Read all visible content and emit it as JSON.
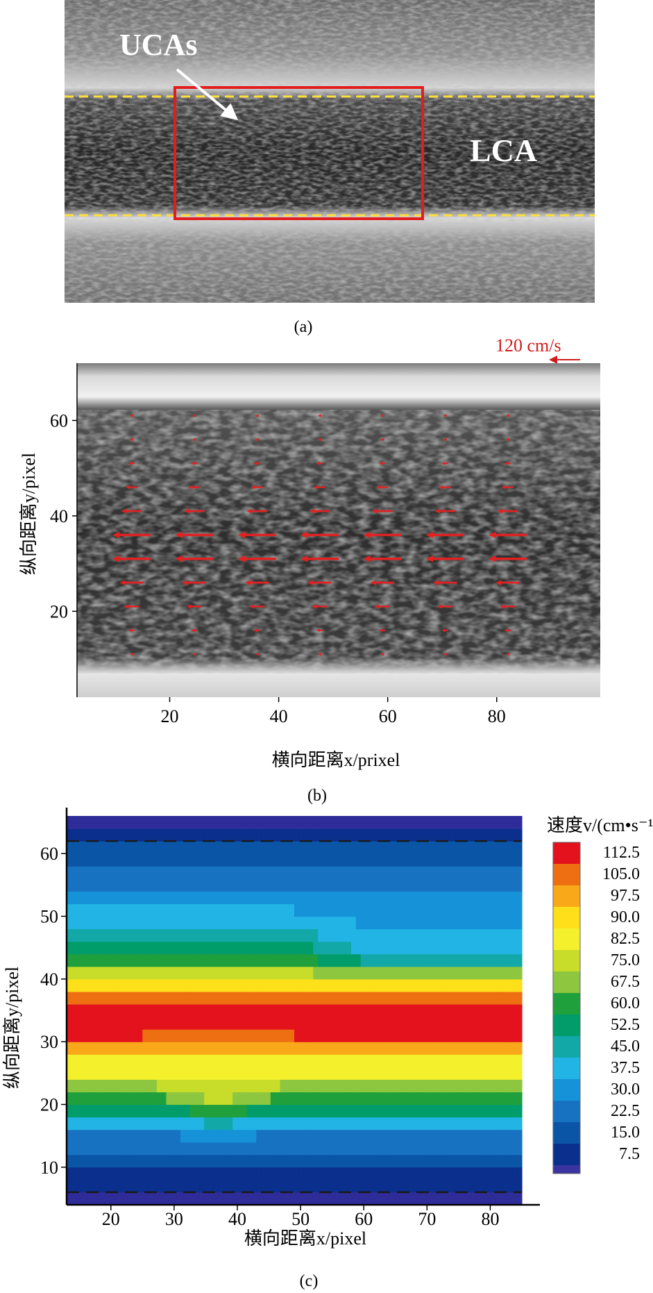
{
  "panel_a": {
    "label": "(a)",
    "annotation_ucas": "UCAs",
    "annotation_lca": "LCA",
    "colors": {
      "roi_box": "#e11d1d",
      "wall_lines": "#ffe03a",
      "text": "#ffffff"
    }
  },
  "panel_b": {
    "label": "(b)",
    "scale_label": "120 cm/s",
    "ylabel": "纵向距离y/pixel",
    "xlabel": "横向距离x/prixel",
    "colors": {
      "vectors": "#e02222",
      "scale": "#d21c1c"
    }
  },
  "panel_c": {
    "label": "(c)",
    "ylabel": "纵向距离y/pixel",
    "xlabel": "横向距离x/pixel",
    "colorbar_title": "速度v/(cm•s⁻¹)"
  },
  "chart_data": [
    {
      "type": "quiver",
      "x_ticks": [
        20,
        40,
        60,
        80
      ],
      "y_ticks": [
        20,
        40,
        60
      ],
      "xlim": [
        3,
        99
      ],
      "ylim": [
        2,
        72
      ],
      "scale_arrow_cm_s": 120,
      "vector_columns_x": [
        13,
        24.5,
        36,
        47.5,
        59,
        70.5,
        82
      ],
      "vector_rows": [
        {
          "y": 61,
          "speeds": [
            5,
            5,
            5,
            5,
            5,
            5,
            5
          ]
        },
        {
          "y": 56,
          "speeds": [
            10,
            10,
            10,
            10,
            10,
            10,
            10
          ]
        },
        {
          "y": 51,
          "speeds": [
            20,
            20,
            20,
            20,
            20,
            20,
            20
          ]
        },
        {
          "y": 46,
          "speeds": [
            35,
            35,
            35,
            35,
            35,
            35,
            35
          ]
        },
        {
          "y": 41,
          "speeds": [
            60,
            60,
            60,
            60,
            60,
            60,
            60
          ]
        },
        {
          "y": 36,
          "speeds": [
            112,
            112,
            112,
            112,
            112,
            112,
            112
          ]
        },
        {
          "y": 31,
          "speeds": [
            112,
            112,
            112,
            112,
            112,
            112,
            112
          ]
        },
        {
          "y": 26,
          "speeds": [
            70,
            70,
            70,
            70,
            70,
            70,
            70
          ]
        },
        {
          "y": 21,
          "speeds": [
            45,
            45,
            45,
            45,
            45,
            45,
            45
          ]
        },
        {
          "y": 16,
          "speeds": [
            20,
            20,
            20,
            20,
            20,
            20,
            20
          ]
        },
        {
          "y": 11,
          "speeds": [
            10,
            10,
            10,
            10,
            10,
            10,
            10
          ]
        }
      ]
    },
    {
      "type": "heatmap",
      "x_ticks": [
        20,
        30,
        40,
        50,
        60,
        70,
        80
      ],
      "y_ticks": [
        10,
        20,
        30,
        40,
        50,
        60
      ],
      "xlim": [
        13,
        85
      ],
      "ylim": [
        4,
        66
      ],
      "grid": false,
      "colorbar_ticks": [
        "112.5",
        "105.0",
        "97.5",
        "90.0",
        "82.5",
        "75.0",
        "67.5",
        "60.0",
        "52.5",
        "45.0",
        "37.5",
        "30.0",
        "22.5",
        "15.0",
        "7.5"
      ],
      "colorbar_colors": [
        "#e3121c",
        "#ee6f12",
        "#f9a81a",
        "#fde01a",
        "#f5f02c",
        "#c8dc2a",
        "#8dc63f",
        "#20a03c",
        "#009c6a",
        "#12a8a8",
        "#21b4e4",
        "#1592d8",
        "#1872c2",
        "#0a55a6",
        "#0a2f8c",
        "#3a34a0"
      ],
      "profile_y": [
        4,
        6,
        8,
        10,
        12,
        14,
        16,
        18,
        20,
        22,
        24,
        26,
        28,
        30,
        32,
        34,
        36,
        38,
        40,
        42,
        44,
        46,
        48,
        50,
        52,
        54,
        56,
        58,
        60,
        62,
        64,
        66
      ],
      "velocity_profile_x_13_25_49_85": [
        0,
        7,
        10,
        15,
        20,
        25,
        32,
        45,
        60,
        67,
        80,
        85,
        92,
        112.5,
        112.5,
        112.5,
        112.5,
        105,
        85,
        70,
        60,
        52,
        45,
        40,
        35,
        30,
        25,
        22,
        18,
        15,
        7.5,
        0
      ],
      "velocity_profile_x_37": [
        0,
        7,
        10,
        15,
        20,
        25,
        38,
        55,
        75,
        80,
        82,
        84,
        90,
        105,
        112.5,
        112.5,
        112.5,
        105,
        85,
        70,
        60,
        52,
        45,
        40,
        35,
        30,
        25,
        22,
        18,
        15,
        7.5,
        0
      ],
      "velocity_profile_x_60_85_upper": [
        0,
        7,
        10,
        15,
        20,
        25,
        32,
        45,
        60,
        67,
        80,
        85,
        92,
        112.5,
        112.5,
        112.5,
        112.5,
        105,
        80,
        58,
        45,
        40,
        38,
        36,
        33,
        30,
        25,
        22,
        18,
        15,
        7.5,
        0
      ],
      "wall_lines_y": [
        6,
        62
      ]
    }
  ]
}
